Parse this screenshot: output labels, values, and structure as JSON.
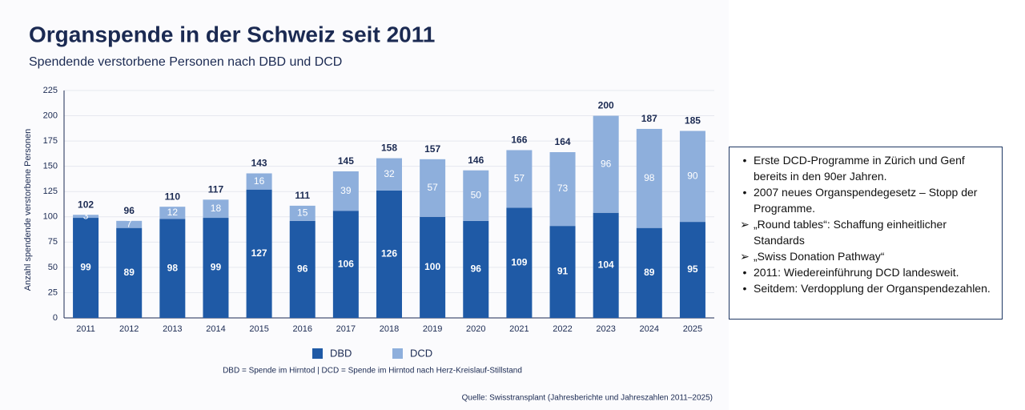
{
  "chart_data": {
    "type": "stacked_bar",
    "title": "Organspende in der Schweiz seit 2011",
    "subtitle": "Spendende verstorbene Personen nach DBD und DCD",
    "ylabel": "Anzahl spendende verstorbene Personen",
    "categories": [
      "2011",
      "2012",
      "2013",
      "2014",
      "2015",
      "2016",
      "2017",
      "2018",
      "2019",
      "2020",
      "2021",
      "2022",
      "2023",
      "2024",
      "2025"
    ],
    "series": [
      {
        "name": "DBD",
        "color": "#1f5aa6",
        "values": [
          99,
          89,
          98,
          99,
          127,
          96,
          106,
          126,
          100,
          96,
          109,
          91,
          104,
          89,
          95
        ]
      },
      {
        "name": "DCD",
        "color": "#8eafdc",
        "values": [
          3,
          7,
          12,
          18,
          16,
          15,
          39,
          32,
          57,
          50,
          57,
          73,
          96,
          98,
          90
        ]
      }
    ],
    "totals": [
      102,
      96,
      110,
      117,
      143,
      111,
      145,
      158,
      157,
      146,
      166,
      164,
      200,
      187,
      185
    ],
    "ylim": [
      0,
      225
    ],
    "yticks": [
      0,
      25,
      50,
      75,
      100,
      125,
      150,
      175,
      200,
      225
    ],
    "grid": true,
    "footnote": "DBD = Spende im Hirntod  |  DCD = Spende im Hirntod nach Herz-Kreislauf-Stillstand",
    "source": "Quelle: Swisstransplant (Jahresberichte und Jahreszahlen 2011–2025)"
  },
  "notes": [
    {
      "bullet": "•",
      "text": "Erste DCD-Programme in Zürich und Genf bereits in den 90er Jahren."
    },
    {
      "bullet": "•",
      "text": "2007 neues Organspendegesetz – Stopp der Programme."
    },
    {
      "bullet": "➢",
      "text": "„Round tables“: Schaffung einheitlicher Standards"
    },
    {
      "bullet": "➢",
      "text": "„Swiss Donation Pathway“"
    },
    {
      "bullet": "•",
      "text": "2011: Wiedereinführung DCD landesweit."
    },
    {
      "bullet": "•",
      "text": "Seitdem: Verdopplung der Organspendezahlen."
    }
  ]
}
